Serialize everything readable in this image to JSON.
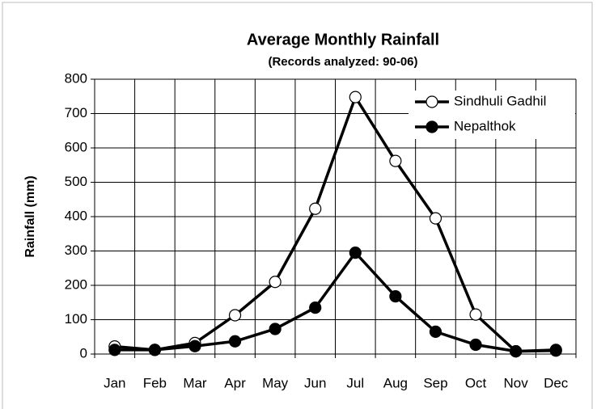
{
  "chart_data": {
    "type": "line",
    "title": "Average Monthly Rainfall",
    "subtitle": "(Records analyzed: 90-06)",
    "y_label": "Rainfall (mm)",
    "categories": [
      "Jan",
      "Feb",
      "Mar",
      "Apr",
      "May",
      "Jun",
      "Jul",
      "Aug",
      "Sep",
      "Oct",
      "Nov",
      "Dec"
    ],
    "series": [
      {
        "name": "Sindhuli Gadhil",
        "color": "#000000",
        "marker": "open-circle",
        "values": [
          22,
          12,
          32,
          113,
          210,
          423,
          748,
          562,
          395,
          115,
          8,
          12
        ]
      },
      {
        "name": "Nepalthok",
        "color": "#000000",
        "marker": "filled-circle",
        "values": [
          12,
          12,
          23,
          37,
          73,
          135,
          295,
          168,
          65,
          27,
          8,
          10
        ]
      }
    ],
    "ylim": [
      0,
      800
    ],
    "yticks": [
      0,
      100,
      200,
      300,
      400,
      500,
      600,
      700,
      800
    ],
    "grid": true,
    "legend": "top-right"
  }
}
